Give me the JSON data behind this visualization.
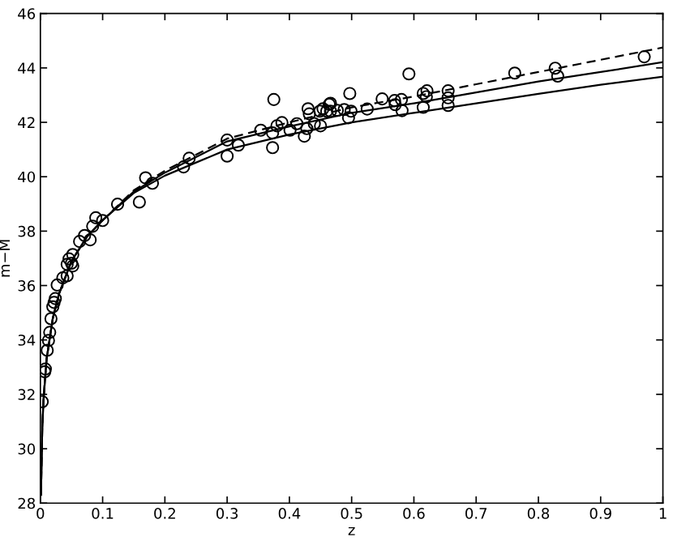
{
  "chart_data": {
    "type": "line",
    "xlabel": "z",
    "ylabel": "m−M",
    "xlim": [
      0,
      1
    ],
    "ylim": [
      28,
      46
    ],
    "xticks": [
      0,
      0.1,
      0.2,
      0.3,
      0.4,
      0.5,
      0.6,
      0.7,
      0.8,
      0.9,
      1
    ],
    "yticks": [
      28,
      30,
      32,
      34,
      36,
      38,
      40,
      42,
      44,
      46
    ],
    "grid": false,
    "series": [
      {
        "type": "scatter",
        "marker": "circle",
        "color": "#000000",
        "x": [
          0.97,
          0.762,
          0.827,
          0.831,
          0.592,
          0.655,
          0.655,
          0.655,
          0.615,
          0.621,
          0.62,
          0.615,
          0.58,
          0.569,
          0.57,
          0.581,
          0.549,
          0.525,
          0.497,
          0.495,
          0.499,
          0.488,
          0.477,
          0.466,
          0.46,
          0.375,
          0.373,
          0.373,
          0.38,
          0.388,
          0.354,
          0.318,
          0.3,
          0.3,
          0.401,
          0.412,
          0.424,
          0.43,
          0.432,
          0.428,
          0.44,
          0.45,
          0.449,
          0.454,
          0.464,
          0.466,
          0.239,
          0.23,
          0.169,
          0.18,
          0.159,
          0.124,
          0.1,
          0.089,
          0.084,
          0.08,
          0.071,
          0.063,
          0.052,
          0.046,
          0.043,
          0.05,
          0.052,
          0.043,
          0.036,
          0.027,
          0.024,
          0.022,
          0.02,
          0.017,
          0.015,
          0.013,
          0.011,
          0.008,
          0.007,
          0.003
        ],
        "values": [
          44.41,
          43.81,
          43.99,
          43.7,
          43.78,
          43.16,
          42.9,
          42.62,
          43.06,
          43.16,
          42.94,
          42.55,
          42.84,
          42.8,
          42.65,
          42.43,
          42.86,
          42.49,
          43.06,
          42.17,
          42.41,
          42.47,
          42.44,
          42.7,
          42.41,
          42.84,
          41.07,
          41.61,
          41.87,
          41.99,
          41.71,
          41.16,
          41.35,
          40.76,
          41.71,
          41.95,
          41.49,
          42.5,
          42.31,
          41.77,
          41.95,
          41.87,
          42.41,
          42.5,
          42.66,
          42.41,
          40.68,
          40.36,
          39.96,
          39.76,
          39.07,
          38.99,
          38.39,
          38.49,
          38.18,
          37.68,
          37.84,
          37.62,
          37.14,
          36.98,
          36.78,
          36.82,
          36.72,
          36.36,
          36.28,
          36.02,
          35.52,
          35.38,
          35.22,
          34.78,
          34.28,
          33.98,
          33.62,
          32.93,
          32.83,
          31.73
        ]
      },
      {
        "line_style": "solid",
        "marker": "none",
        "color": "#000000",
        "x": [
          0.001,
          0.003,
          0.005,
          0.01,
          0.02,
          0.03,
          0.05,
          0.075,
          0.1,
          0.15,
          0.2,
          0.3,
          0.4,
          0.5,
          0.6,
          0.7,
          0.8,
          0.9,
          1.0
        ],
        "values": [
          28.3,
          30.7,
          31.8,
          33.3,
          34.8,
          35.7,
          36.9,
          37.8,
          38.4,
          39.4,
          40.04,
          41.0,
          41.55,
          42.0,
          42.35,
          42.7,
          43.05,
          43.38,
          43.68
        ]
      },
      {
        "line_style": "solid",
        "marker": "none",
        "color": "#000000",
        "x": [
          0.001,
          0.003,
          0.005,
          0.01,
          0.02,
          0.03,
          0.05,
          0.075,
          0.1,
          0.15,
          0.2,
          0.3,
          0.4,
          0.5,
          0.6,
          0.7,
          0.8,
          0.9,
          1.0
        ],
        "values": [
          28.3,
          30.7,
          31.8,
          33.3,
          34.8,
          35.7,
          36.9,
          37.8,
          38.4,
          39.45,
          40.15,
          41.3,
          41.85,
          42.35,
          42.7,
          43.1,
          43.5,
          43.85,
          44.21
        ]
      },
      {
        "line_style": "dashed",
        "marker": "none",
        "color": "#000000",
        "x": [
          0.001,
          0.003,
          0.005,
          0.01,
          0.02,
          0.03,
          0.05,
          0.075,
          0.1,
          0.15,
          0.2,
          0.3,
          0.4,
          0.5,
          0.6,
          0.7,
          0.8,
          0.9,
          1.0
        ],
        "values": [
          28.3,
          30.7,
          31.8,
          33.3,
          34.8,
          35.7,
          36.9,
          37.8,
          38.4,
          39.5,
          40.22,
          41.4,
          42.0,
          42.55,
          42.95,
          43.4,
          43.85,
          44.3,
          44.75
        ]
      }
    ]
  }
}
